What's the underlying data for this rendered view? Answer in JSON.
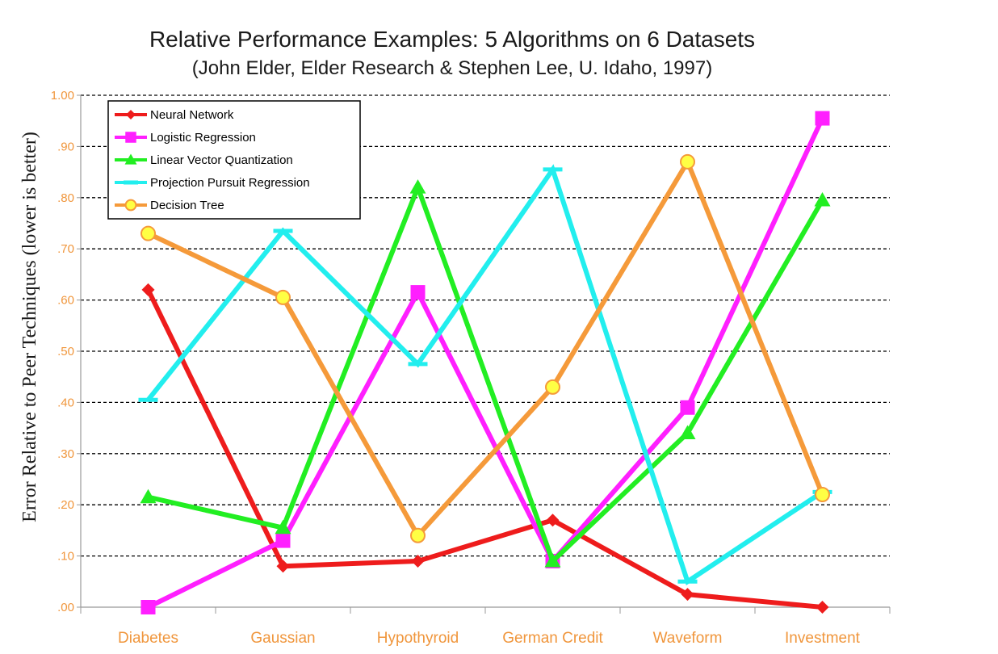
{
  "chart_data": {
    "type": "line",
    "title": "Relative Performance Examples:  5 Algorithms on 6 Datasets",
    "subtitle": "(John Elder, Elder Research & Stephen Lee, U. Idaho, 1997)",
    "ylabel": "Error Relative to Peer Techniques (lower is better)",
    "xlabel": "",
    "categories": [
      "Diabetes",
      "Gaussian",
      "Hypothyroid",
      "German Credit",
      "Waveform",
      "Investment"
    ],
    "ylim": [
      0,
      1
    ],
    "yticks": [
      ".00",
      ".10",
      ".20",
      ".30",
      ".40",
      ".50",
      ".60",
      ".70",
      ".80",
      ".90",
      "1.00"
    ],
    "grid": "horizontal dashed",
    "legend_position": "top-left",
    "series": [
      {
        "name": "Neural Network",
        "color": "#ee1c1c",
        "marker": "diamond",
        "values": [
          0.62,
          0.08,
          0.09,
          0.17,
          0.025,
          0.0
        ]
      },
      {
        "name": "Logistic Regression",
        "color": "#ff1fff",
        "marker": "square",
        "values": [
          0.0,
          0.13,
          0.615,
          0.09,
          0.39,
          0.955
        ]
      },
      {
        "name": "Linear Vector Quantization",
        "color": "#22ee22",
        "marker": "triangle",
        "values": [
          0.215,
          0.155,
          0.82,
          0.09,
          0.34,
          0.795
        ]
      },
      {
        "name": "Projection Pursuit Regression",
        "color": "#22eeee",
        "marker": "dash",
        "values": [
          0.405,
          0.735,
          0.475,
          0.855,
          0.05,
          0.225
        ]
      },
      {
        "name": "Decision Tree",
        "color": "#f59a3a",
        "marker": "circle",
        "values": [
          0.73,
          0.605,
          0.14,
          0.43,
          0.87,
          0.22
        ]
      }
    ]
  }
}
